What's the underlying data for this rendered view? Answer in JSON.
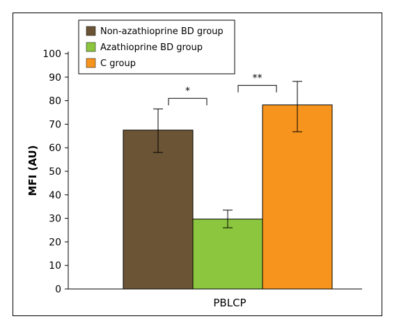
{
  "chart_data": {
    "type": "bar",
    "categories": [
      "PBLCP"
    ],
    "series": [
      {
        "name": "Non-azathioprine BD group",
        "value": 67.5,
        "error": [
          58.0,
          76.5
        ],
        "color": "#6b5435"
      },
      {
        "name": "Azathioprine BD group",
        "value": 29.7,
        "error": [
          26.0,
          33.5
        ],
        "color": "#8cc63f"
      },
      {
        "name": "C group",
        "value": 78.2,
        "error": [
          66.8,
          88.2
        ],
        "color": "#f7941d"
      }
    ],
    "ylabel": "MFI (AU)",
    "xlabel": "",
    "ylim": [
      0,
      100
    ],
    "yticks": [
      "0",
      "10",
      "20",
      "30",
      "40",
      "50",
      "60",
      "70",
      "80",
      "90",
      "100"
    ],
    "grid": false,
    "legend": "top-left",
    "annotations": [
      {
        "text": "*",
        "between": [
          0,
          1
        ],
        "level": 81
      },
      {
        "text": "**",
        "between": [
          1,
          2
        ],
        "level": 86.5
      }
    ]
  }
}
